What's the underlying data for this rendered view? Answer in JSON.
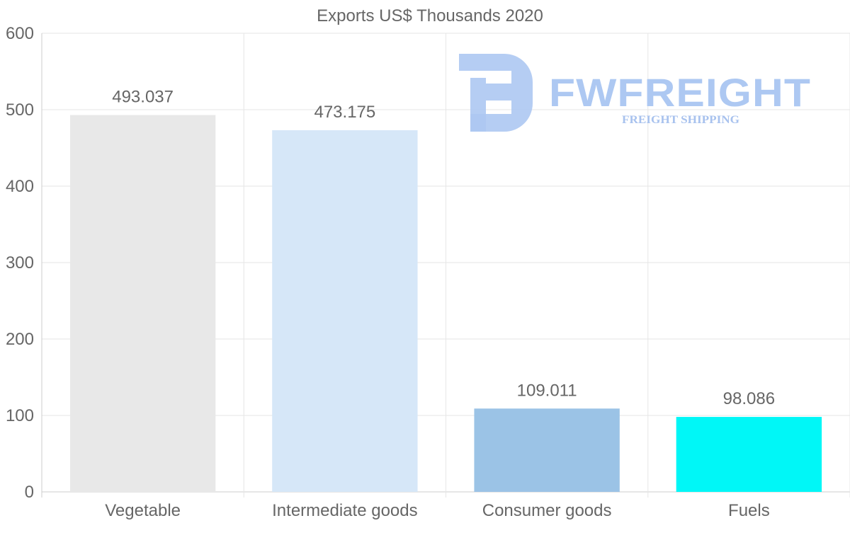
{
  "chart_data": {
    "type": "bar",
    "title": "Exports US$ Thousands 2020",
    "categories": [
      "Vegetable",
      "Intermediate goods",
      "Consumer goods",
      "Fuels"
    ],
    "values": [
      493.037,
      473.175,
      109.011,
      98.086
    ],
    "value_labels": [
      "493.037",
      "473.175",
      "109.011",
      "98.086"
    ],
    "bar_colors": [
      "#e8e8e8",
      "#d6e7f8",
      "#9bc3e6",
      "#00f7f7"
    ],
    "ylim": [
      0,
      600
    ],
    "yticks": [
      "0",
      "100",
      "200",
      "300",
      "400",
      "500",
      "600"
    ],
    "xlabel": "",
    "ylabel": "",
    "grid": true
  },
  "watermark": {
    "name": "FWFREIGHT",
    "tagline": "FREIGHT SHIPPING",
    "color": "#adc8f2"
  }
}
